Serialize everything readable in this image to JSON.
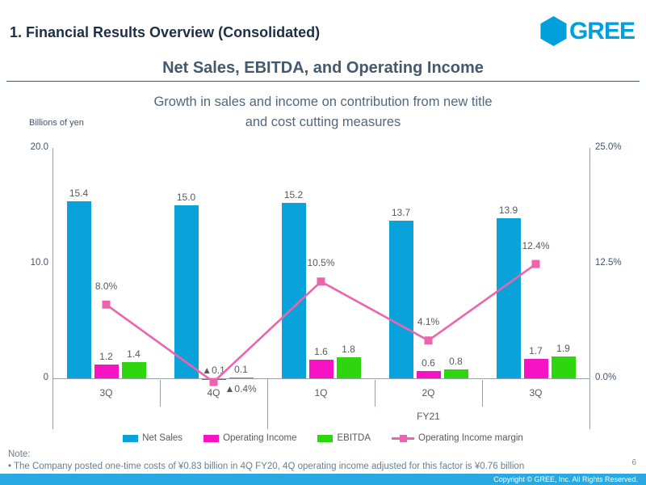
{
  "header": {
    "title": "1. Financial Results Overview (Consolidated)",
    "logo_text": "GREE",
    "logo_color": "#00a0dc"
  },
  "slide": {
    "title": "Net Sales, EBITDA, and Operating Income",
    "subtitle_line1": "Growth in sales and income on contribution from new title",
    "subtitle_line2": "and cost cutting measures"
  },
  "chart_data": {
    "type": "bar",
    "title": "Net Sales, EBITDA, and Operating Income",
    "axis_label_left": "Billions of yen",
    "categories": [
      "3Q",
      "4Q",
      "1Q",
      "2Q",
      "3Q"
    ],
    "fiscal_year_label": "FY21",
    "series": [
      {
        "name": "Net Sales",
        "color": "#09a2db",
        "values": [
          15.4,
          15.0,
          15.2,
          13.7,
          13.9
        ],
        "labels": [
          "15.4",
          "15.0",
          "15.2",
          "13.7",
          "13.9"
        ]
      },
      {
        "name": "Operating Income",
        "color": "#f712c4",
        "values": [
          1.2,
          -0.1,
          1.6,
          0.6,
          1.7
        ],
        "labels": [
          "1.2",
          "▲0.1",
          "1.6",
          "0.6",
          "1.7"
        ]
      },
      {
        "name": "EBITDA",
        "color": "#2dd60f",
        "values": [
          1.4,
          0.1,
          1.8,
          0.8,
          1.9
        ],
        "labels": [
          "1.4",
          "0.1",
          "1.8",
          "0.8",
          "1.9"
        ]
      }
    ],
    "line_series": {
      "name": "Operating Income margin",
      "color": "#ec63ae",
      "values": [
        8.0,
        -0.4,
        10.5,
        4.1,
        12.4
      ],
      "labels": [
        "8.0%",
        "▲0.4%",
        "10.5%",
        "4.1%",
        "12.4%"
      ]
    },
    "left_axis": {
      "max": 20,
      "min": 0,
      "ticks": [
        {
          "label": "20.0",
          "value": 20
        },
        {
          "label": "10.0",
          "value": 10
        },
        {
          "label": "0",
          "value": 0
        }
      ]
    },
    "right_axis": {
      "max": 25,
      "min": 0,
      "ticks": [
        {
          "label": "25.0%",
          "value": 25
        },
        {
          "label": "12.5%",
          "value": 12.5
        },
        {
          "label": "0.0%",
          "value": 0
        }
      ]
    },
    "grid": false,
    "legend_position": "bottom"
  },
  "note": {
    "label": "Note:",
    "bullet": "• The Company posted one-time costs of ¥0.83 billion in 4Q FY20, 4Q operating income adjusted for this factor is ¥0.76 billion"
  },
  "footer": {
    "page_number": "6",
    "copyright": "Copyright © GREE, Inc. All Rights Reserved."
  }
}
